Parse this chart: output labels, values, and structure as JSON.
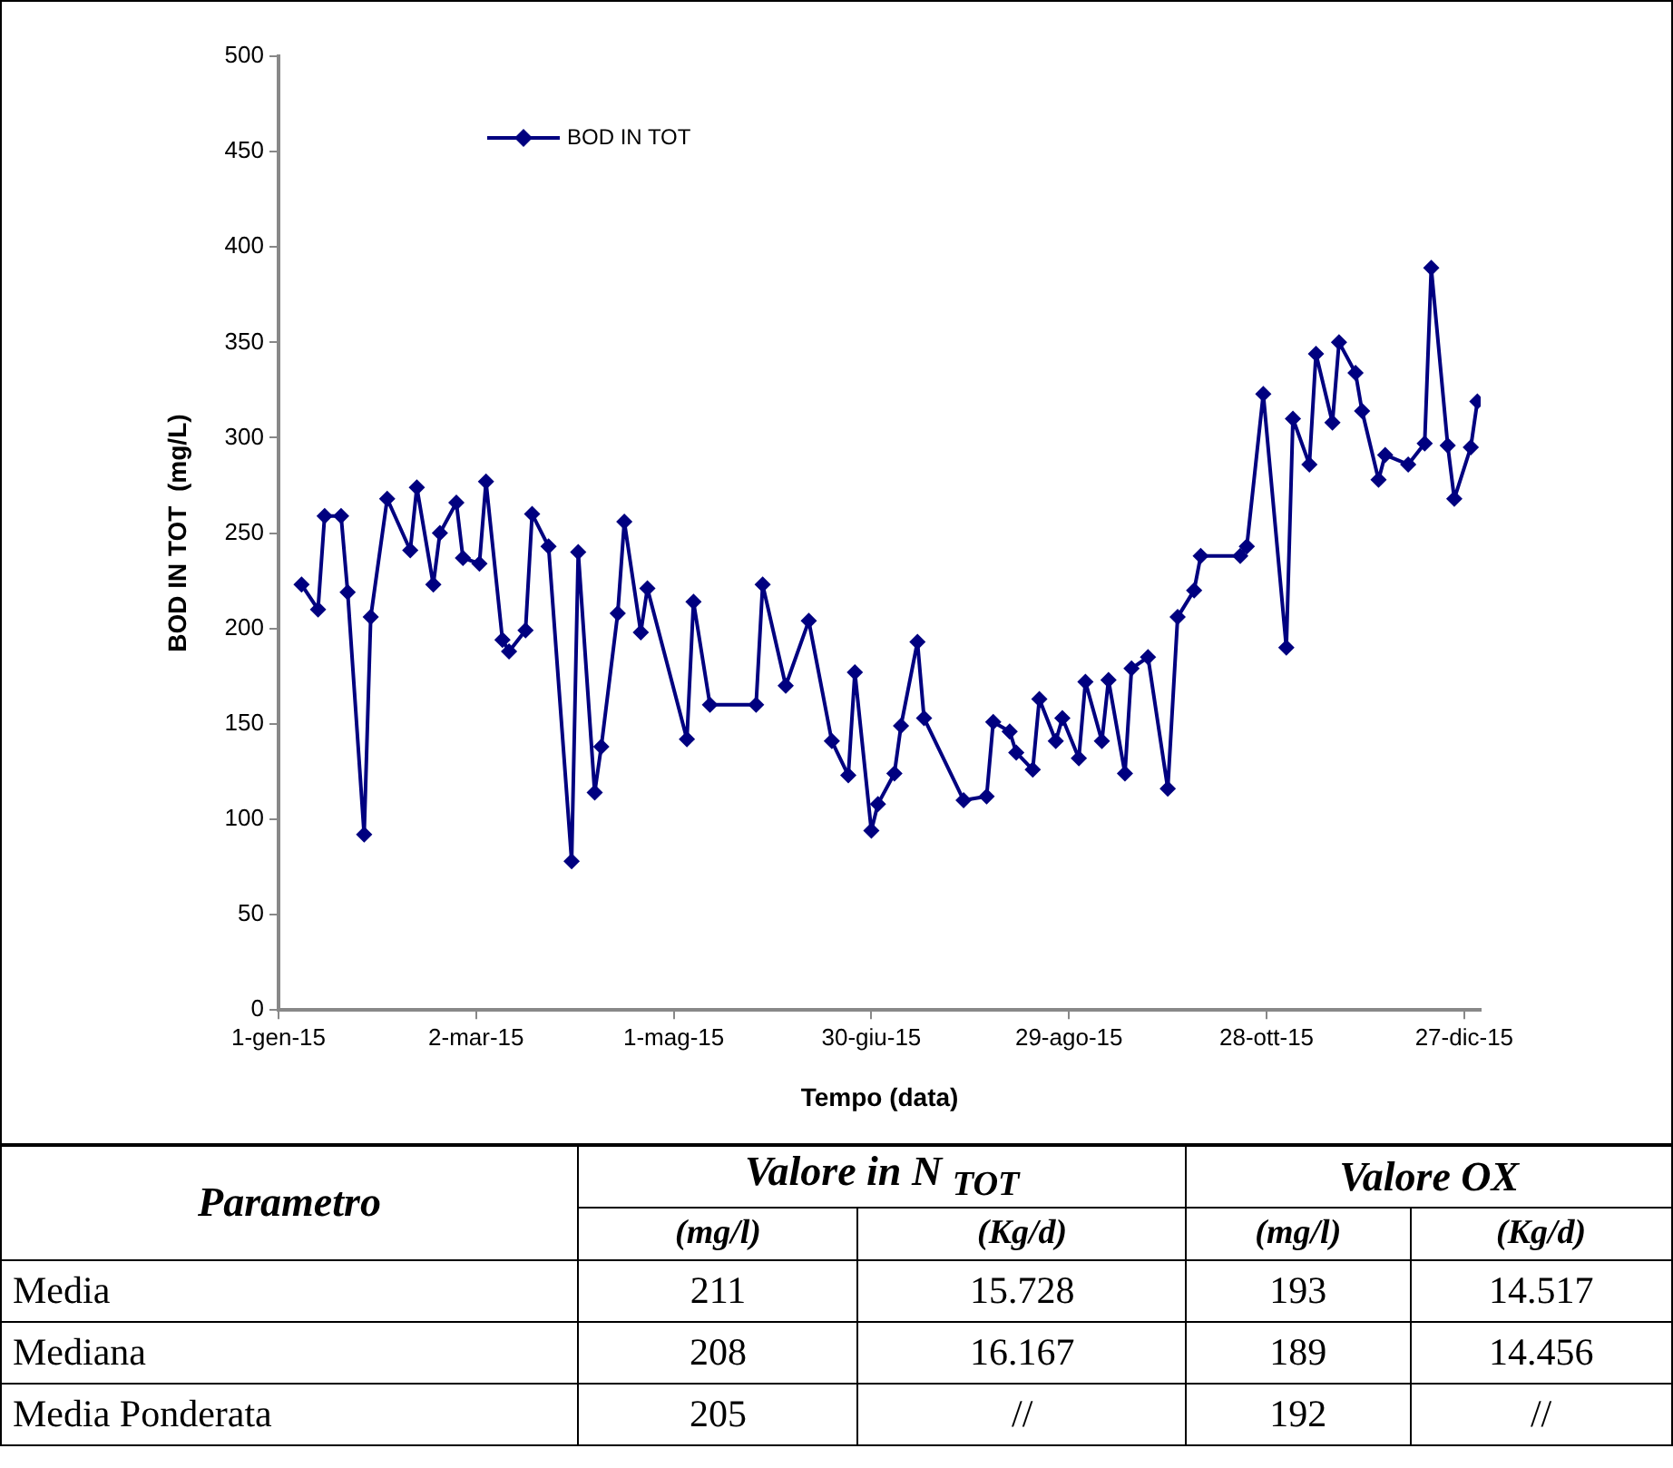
{
  "chart_data": [
    {
      "type": "line",
      "xlabel": "Tempo (data)",
      "ylabel": "BOD IN TOT  (mg/L)",
      "x": [
        "2015-01-08",
        "2015-01-13",
        "2015-01-15",
        "2015-01-20",
        "2015-01-22",
        "2015-01-27",
        "2015-01-29",
        "2015-02-03",
        "2015-02-10",
        "2015-02-12",
        "2015-02-17",
        "2015-02-19",
        "2015-02-24",
        "2015-02-26",
        "2015-03-03",
        "2015-03-05",
        "2015-03-10",
        "2015-03-12",
        "2015-03-17",
        "2015-03-19",
        "2015-03-24",
        "2015-03-31",
        "2015-04-02",
        "2015-04-07",
        "2015-04-09",
        "2015-04-14",
        "2015-04-16",
        "2015-04-21",
        "2015-04-23",
        "2015-05-05",
        "2015-05-07",
        "2015-05-12",
        "2015-05-26",
        "2015-05-28",
        "2015-06-04",
        "2015-06-11",
        "2015-06-18",
        "2015-06-23",
        "2015-06-25",
        "2015-06-30",
        "2015-07-02",
        "2015-07-07",
        "2015-07-09",
        "2015-07-14",
        "2015-07-16",
        "2015-07-28",
        "2015-08-04",
        "2015-08-06",
        "2015-08-11",
        "2015-08-13",
        "2015-08-18",
        "2015-08-20",
        "2015-08-25",
        "2015-08-27",
        "2015-09-01",
        "2015-09-03",
        "2015-09-08",
        "2015-09-10",
        "2015-09-15",
        "2015-09-17",
        "2015-09-22",
        "2015-09-28",
        "2015-10-01",
        "2015-10-06",
        "2015-10-08",
        "2015-10-20",
        "2015-10-22",
        "2015-10-27",
        "2015-11-03",
        "2015-11-05",
        "2015-11-10",
        "2015-11-12",
        "2015-11-17",
        "2015-11-19",
        "2015-11-24",
        "2015-11-26",
        "2015-12-01",
        "2015-12-03",
        "2015-12-10",
        "2015-12-15",
        "2015-12-17",
        "2015-12-22",
        "2015-12-24",
        "2015-12-29",
        "2015-12-31"
      ],
      "series": [
        {
          "name": "BOD IN TOT",
          "color": "#000080",
          "values": [
            223,
            210,
            259,
            259,
            219,
            92,
            206,
            268,
            241,
            274,
            223,
            250,
            266,
            237,
            234,
            277,
            194,
            188,
            199,
            260,
            243,
            78,
            240,
            114,
            138,
            208,
            256,
            198,
            221,
            142,
            214,
            160,
            160,
            223,
            170,
            204,
            141,
            123,
            177,
            94,
            108,
            124,
            149,
            193,
            153,
            110,
            112,
            151,
            146,
            135,
            126,
            163,
            141,
            153,
            132,
            172,
            141,
            173,
            124,
            179,
            185,
            116,
            206,
            220,
            238,
            238,
            243,
            323,
            190,
            310,
            286,
            344,
            308,
            350,
            334,
            314,
            278,
            291,
            286,
            297,
            389,
            296,
            268,
            295,
            319
          ]
        }
      ],
      "xlim": [
        "2015-01-01",
        "2016-01-01"
      ],
      "xticks": [
        {
          "value": "2015-01-01",
          "label": "1-gen-15"
        },
        {
          "value": "2015-03-02",
          "label": "2-mar-15"
        },
        {
          "value": "2015-05-01",
          "label": "1-mag-15"
        },
        {
          "value": "2015-06-30",
          "label": "30-giu-15"
        },
        {
          "value": "2015-08-29",
          "label": "29-ago-15"
        },
        {
          "value": "2015-10-28",
          "label": "28-ott-15"
        },
        {
          "value": "2015-12-27",
          "label": "27-dic-15"
        }
      ],
      "ylim": [
        0,
        500
      ],
      "yticks": [
        0,
        50,
        100,
        150,
        200,
        250,
        300,
        350,
        400,
        450,
        500
      ],
      "grid": false,
      "legend": "top left",
      "marker": "diamond",
      "line_style": "solid"
    },
    {
      "type": "other",
      "annotations": [
        "Parametro",
        "Valore in N $_{TOT}$",
        "Valore OX",
        "(mg/l)",
        "(Kg/d)",
        "(mg/l)",
        "(Kg/d)",
        "Media",
        "211",
        "15.728",
        "193",
        "14.517",
        "Mediana",
        "208",
        "16.167",
        "189",
        "14.456",
        "Media Ponderata",
        "205",
        "//",
        "192",
        "//"
      ]
    }
  ]
}
